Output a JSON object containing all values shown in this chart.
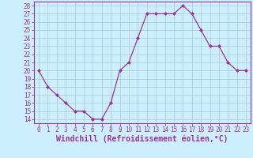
{
  "x": [
    0,
    1,
    2,
    3,
    4,
    5,
    6,
    7,
    8,
    9,
    10,
    11,
    12,
    13,
    14,
    15,
    16,
    17,
    18,
    19,
    20,
    21,
    22,
    23
  ],
  "y": [
    20,
    18,
    17,
    16,
    15,
    15,
    14,
    14,
    16,
    20,
    21,
    24,
    27,
    27,
    27,
    27,
    28,
    27,
    25,
    23,
    23,
    21,
    20,
    20
  ],
  "line_color": "#993399",
  "marker": "D",
  "marker_size": 2.0,
  "bg_color": "#cceeff",
  "grid_color": "#aacccc",
  "xlabel": "Windchill (Refroidissement éolien,°C)",
  "xlabel_fontsize": 7,
  "ylabel_ticks": [
    14,
    15,
    16,
    17,
    18,
    19,
    20,
    21,
    22,
    23,
    24,
    25,
    26,
    27,
    28
  ],
  "xticks": [
    0,
    1,
    2,
    3,
    4,
    5,
    6,
    7,
    8,
    9,
    10,
    11,
    12,
    13,
    14,
    15,
    16,
    17,
    18,
    19,
    20,
    21,
    22,
    23
  ],
  "xlim": [
    -0.5,
    23.5
  ],
  "ylim": [
    13.5,
    28.5
  ],
  "tick_fontsize": 5.5,
  "tick_color": "#993399",
  "axis_color": "#993399",
  "linewidth": 0.9
}
